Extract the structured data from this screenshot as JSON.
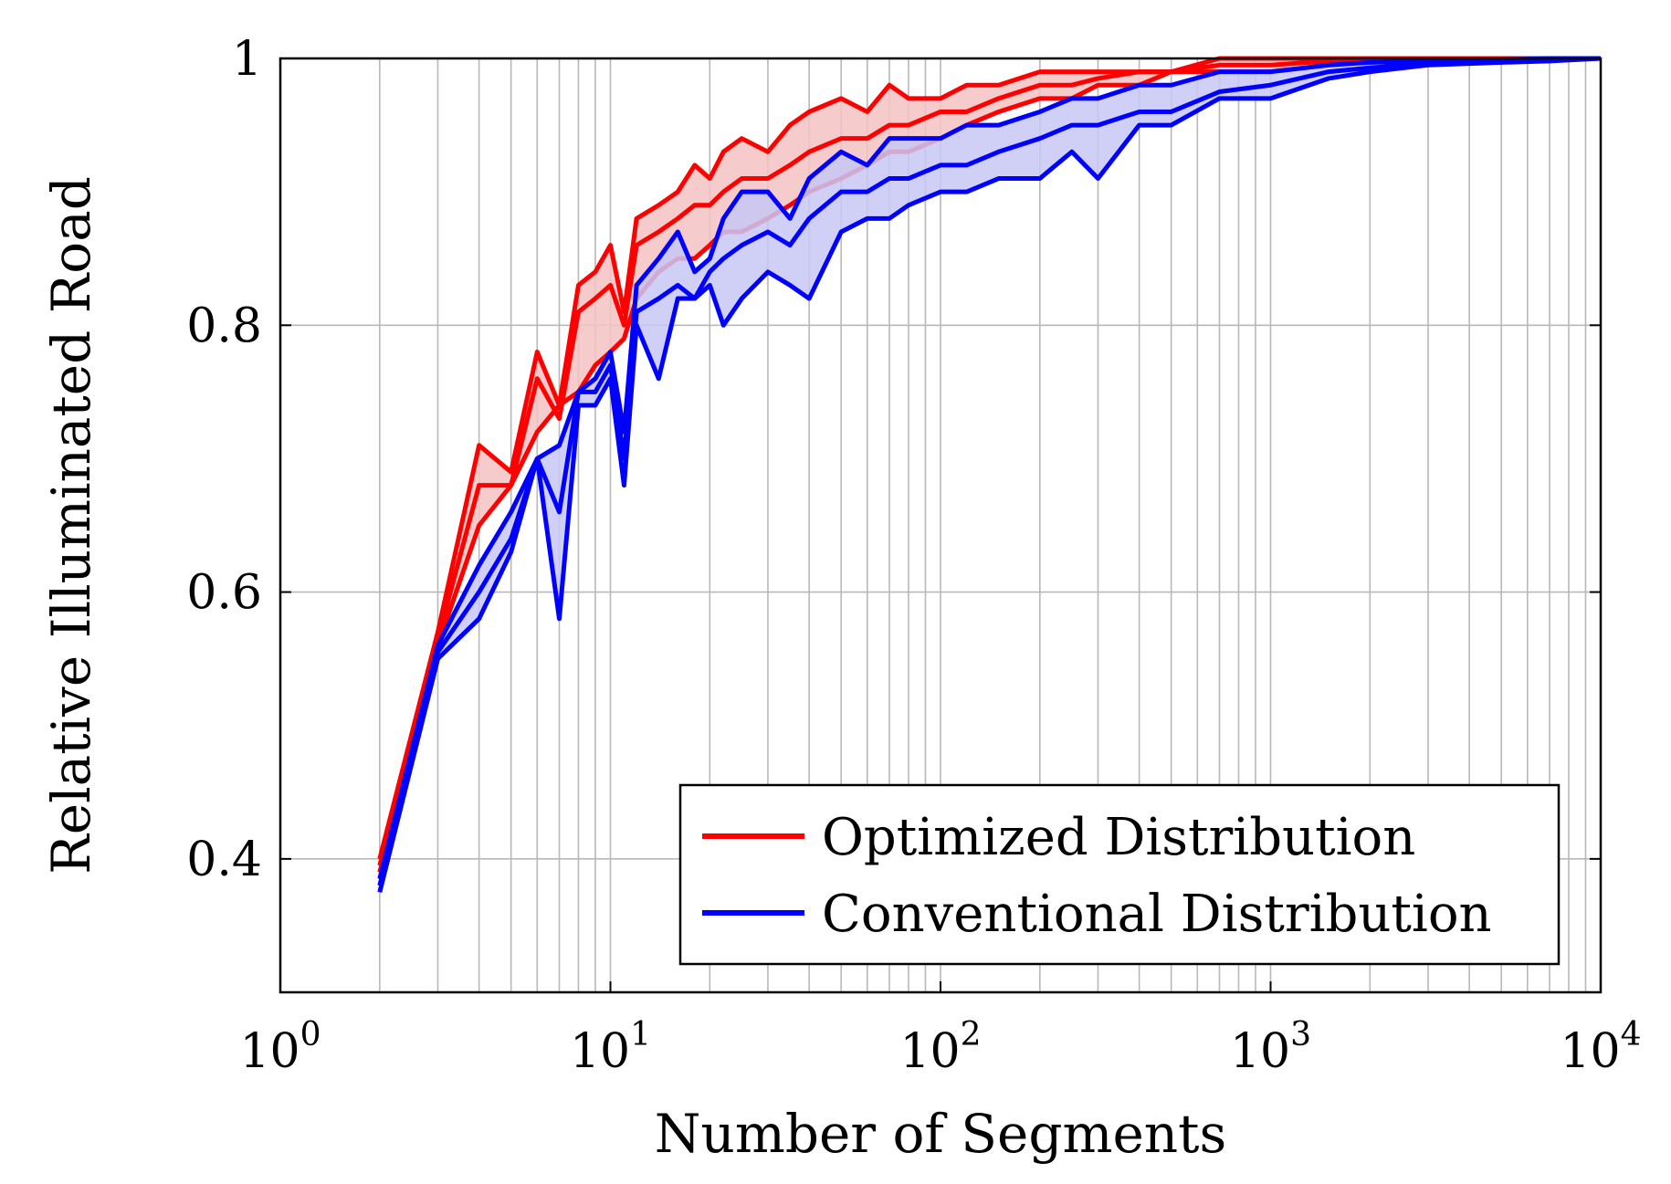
{
  "chart_data": {
    "type": "line",
    "title": "",
    "xlabel": "Number of Segments",
    "ylabel": "Relative Illuminated Road",
    "xscale": "log",
    "xlim": [
      1,
      10000
    ],
    "ylim": [
      0.3,
      1.0
    ],
    "grid": true,
    "legend_position": "bottom-right",
    "x_ticks": [
      {
        "base": "10",
        "exp": "0"
      },
      {
        "base": "10",
        "exp": "1"
      },
      {
        "base": "10",
        "exp": "2"
      },
      {
        "base": "10",
        "exp": "3"
      },
      {
        "base": "10",
        "exp": "4"
      }
    ],
    "y_ticks": [
      "0.4",
      "0.6",
      "0.8",
      "1"
    ],
    "series": [
      {
        "name": "Optimized Distribution",
        "color": "#ff0000",
        "fill": "#f4c2c2",
        "x": [
          2,
          3,
          4,
          5,
          6,
          7,
          8,
          9,
          10,
          11,
          12,
          14,
          16,
          18,
          20,
          22,
          25,
          30,
          35,
          40,
          50,
          60,
          70,
          80,
          100,
          120,
          150,
          200,
          250,
          300,
          400,
          500,
          700,
          1000,
          1500,
          2000,
          3000,
          5000,
          7000,
          10000
        ],
        "upper": [
          0.4,
          0.57,
          0.71,
          0.69,
          0.78,
          0.74,
          0.83,
          0.84,
          0.86,
          0.81,
          0.88,
          0.89,
          0.9,
          0.92,
          0.91,
          0.93,
          0.94,
          0.93,
          0.95,
          0.96,
          0.97,
          0.96,
          0.98,
          0.97,
          0.97,
          0.98,
          0.98,
          0.99,
          0.99,
          0.99,
          0.99,
          0.99,
          1.0,
          1.0,
          1.0,
          1.0,
          1.0,
          1.0,
          1.0,
          1.0
        ],
        "mid": [
          0.395,
          0.565,
          0.68,
          0.68,
          0.76,
          0.73,
          0.81,
          0.82,
          0.83,
          0.8,
          0.86,
          0.87,
          0.88,
          0.89,
          0.89,
          0.9,
          0.91,
          0.91,
          0.92,
          0.93,
          0.94,
          0.94,
          0.95,
          0.95,
          0.96,
          0.96,
          0.97,
          0.98,
          0.98,
          0.985,
          0.99,
          0.99,
          0.995,
          0.995,
          0.998,
          1.0,
          1.0,
          1.0,
          1.0,
          1.0
        ],
        "lower": [
          0.39,
          0.56,
          0.65,
          0.68,
          0.72,
          0.74,
          0.75,
          0.77,
          0.78,
          0.79,
          0.82,
          0.84,
          0.85,
          0.85,
          0.86,
          0.87,
          0.87,
          0.88,
          0.89,
          0.9,
          0.91,
          0.92,
          0.93,
          0.93,
          0.94,
          0.95,
          0.96,
          0.97,
          0.97,
          0.98,
          0.98,
          0.99,
          0.99,
          0.99,
          0.995,
          1.0,
          1.0,
          1.0,
          1.0,
          1.0
        ]
      },
      {
        "name": "Conventional Distribution",
        "color": "#0000ff",
        "fill": "#c8c8f4",
        "x": [
          2,
          3,
          4,
          5,
          6,
          7,
          8,
          9,
          10,
          11,
          12,
          14,
          16,
          18,
          20,
          22,
          25,
          30,
          35,
          40,
          50,
          60,
          70,
          80,
          100,
          120,
          150,
          200,
          250,
          300,
          400,
          500,
          700,
          1000,
          1500,
          2000,
          3000,
          5000,
          7000,
          10000
        ],
        "upper": [
          0.385,
          0.56,
          0.62,
          0.66,
          0.7,
          0.71,
          0.75,
          0.76,
          0.78,
          0.72,
          0.83,
          0.85,
          0.87,
          0.84,
          0.85,
          0.88,
          0.9,
          0.9,
          0.88,
          0.91,
          0.93,
          0.92,
          0.94,
          0.94,
          0.94,
          0.95,
          0.95,
          0.96,
          0.97,
          0.97,
          0.98,
          0.98,
          0.99,
          0.99,
          0.995,
          0.997,
          0.998,
          0.999,
          1.0,
          1.0
        ],
        "mid": [
          0.38,
          0.555,
          0.6,
          0.64,
          0.7,
          0.66,
          0.75,
          0.75,
          0.77,
          0.7,
          0.81,
          0.82,
          0.83,
          0.82,
          0.84,
          0.85,
          0.86,
          0.87,
          0.86,
          0.88,
          0.9,
          0.9,
          0.91,
          0.91,
          0.92,
          0.92,
          0.93,
          0.94,
          0.95,
          0.95,
          0.96,
          0.96,
          0.975,
          0.98,
          0.99,
          0.993,
          0.996,
          0.998,
          0.999,
          1.0
        ],
        "lower": [
          0.375,
          0.55,
          0.58,
          0.63,
          0.7,
          0.58,
          0.74,
          0.74,
          0.76,
          0.68,
          0.8,
          0.76,
          0.82,
          0.82,
          0.83,
          0.8,
          0.82,
          0.84,
          0.83,
          0.82,
          0.87,
          0.88,
          0.88,
          0.89,
          0.9,
          0.9,
          0.91,
          0.91,
          0.93,
          0.91,
          0.95,
          0.95,
          0.97,
          0.97,
          0.985,
          0.99,
          0.995,
          0.997,
          0.998,
          1.0
        ]
      }
    ]
  }
}
